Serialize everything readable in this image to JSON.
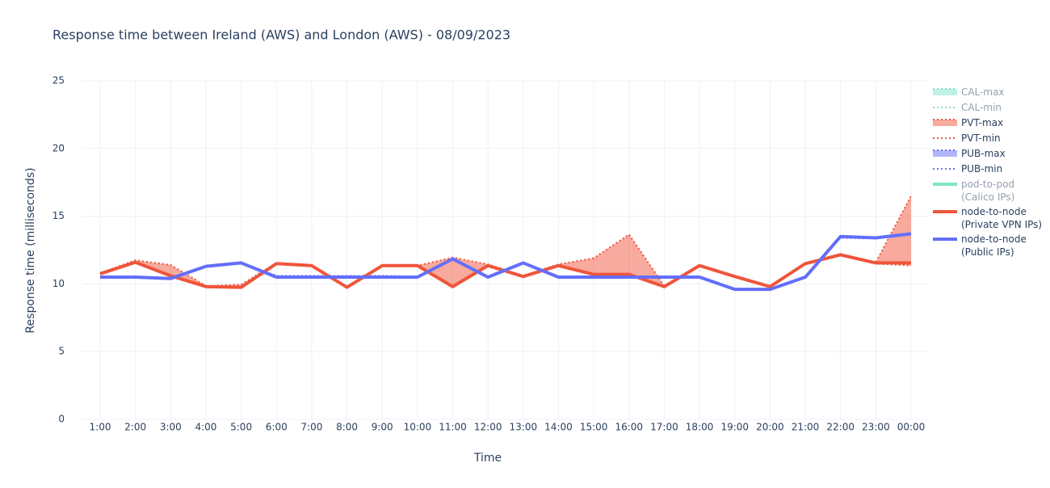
{
  "chart_data": {
    "type": "line",
    "title": "Response time between Ireland (AWS) and London (AWS)   -   08/09/2023",
    "x_label": "Time",
    "y_label": "Response time (milliseconds)",
    "categories": [
      "1:00",
      "2:00",
      "3:00",
      "4:00",
      "5:00",
      "6:00",
      "7:00",
      "8:00",
      "9:00",
      "10:00",
      "11:00",
      "12:00",
      "13:00",
      "14:00",
      "15:00",
      "16:00",
      "17:00",
      "18:00",
      "19:00",
      "20:00",
      "21:00",
      "22:00",
      "23:00",
      "00:00"
    ],
    "ylim": [
      0,
      25
    ],
    "yticks": [
      0,
      5,
      10,
      15,
      20,
      25
    ],
    "grid": true,
    "legend": "right",
    "series": [
      {
        "name": "CAL-max",
        "color": "#00cc96",
        "dash": "dot",
        "fill_to": "CAL-min",
        "visible": "legendonly"
      },
      {
        "name": "CAL-min",
        "color": "#00cc96",
        "dash": "dot",
        "visible": "legendonly"
      },
      {
        "name": "PVT-max",
        "color": "#ef553b",
        "dash": "dot",
        "fill_to": "PVT-min",
        "values": [
          10.8,
          11.75,
          11.4,
          9.85,
          9.95,
          11.55,
          11.35,
          9.75,
          11.4,
          11.35,
          11.95,
          11.45,
          10.6,
          11.45,
          11.9,
          13.65,
          9.85,
          11.35,
          10.6,
          9.85,
          11.5,
          12.2,
          11.6,
          16.5
        ]
      },
      {
        "name": "PVT-min",
        "color": "#ef553b",
        "dash": "dot",
        "values": [
          10.7,
          11.55,
          10.55,
          9.75,
          9.7,
          11.5,
          11.3,
          9.7,
          11.3,
          11.3,
          9.75,
          11.3,
          10.5,
          11.3,
          10.65,
          10.65,
          9.75,
          11.3,
          10.5,
          9.75,
          11.45,
          12.1,
          11.5,
          11.35
        ]
      },
      {
        "name": "PUB-max",
        "color": "#636efa",
        "dash": "dot",
        "fill_to": "PUB-min",
        "values": [
          10.55,
          10.55,
          10.45,
          11.35,
          11.6,
          10.6,
          10.6,
          10.6,
          10.6,
          10.55,
          11.9,
          10.55,
          11.6,
          10.55,
          10.55,
          10.55,
          10.55,
          10.55,
          9.65,
          9.65,
          10.55,
          13.5,
          13.45,
          13.75
        ]
      },
      {
        "name": "PUB-min",
        "color": "#636efa",
        "dash": "dot",
        "values": [
          10.45,
          10.45,
          10.35,
          11.25,
          11.5,
          10.45,
          10.45,
          10.45,
          10.45,
          10.45,
          11.8,
          10.45,
          11.5,
          10.45,
          10.45,
          10.45,
          10.45,
          10.45,
          9.55,
          9.55,
          10.45,
          13.4,
          13.35,
          13.65
        ]
      },
      {
        "name": "pod-to-pod\n(Calico IPs)",
        "color": "#00cc96",
        "dash": "solid",
        "visible": "legendonly"
      },
      {
        "name": "node-to-node\n(Private VPN IPs)",
        "color": "#ef553b",
        "dash": "solid",
        "values": [
          10.75,
          11.6,
          10.6,
          9.8,
          9.75,
          11.5,
          11.35,
          9.75,
          11.35,
          11.35,
          9.8,
          11.35,
          10.55,
          11.35,
          10.7,
          10.7,
          9.8,
          11.35,
          10.55,
          9.8,
          11.5,
          12.15,
          11.55,
          11.55
        ]
      },
      {
        "name": "node-to-node\n(Public IPs)",
        "color": "#636efa",
        "dash": "solid",
        "values": [
          10.5,
          10.5,
          10.4,
          11.3,
          11.55,
          10.5,
          10.5,
          10.5,
          10.5,
          10.5,
          11.85,
          10.5,
          11.55,
          10.5,
          10.5,
          10.5,
          10.5,
          10.5,
          9.6,
          9.6,
          10.5,
          13.5,
          13.4,
          13.7
        ]
      }
    ]
  }
}
